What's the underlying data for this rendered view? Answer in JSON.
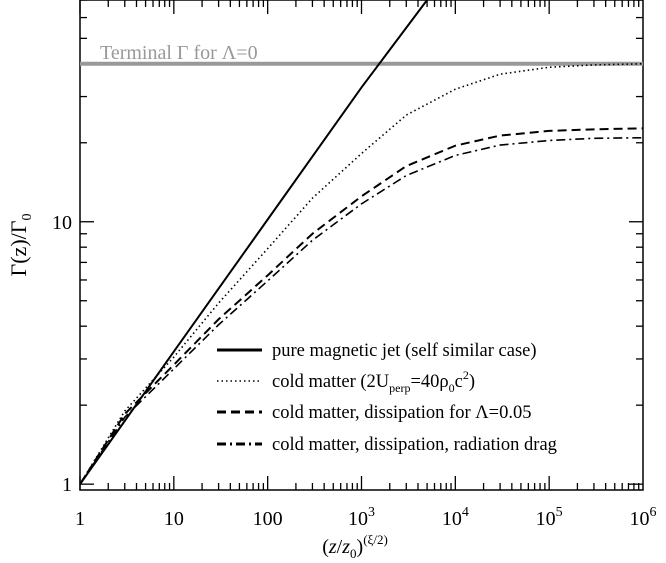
{
  "chart_data": {
    "type": "line",
    "xlabel": {
      "base": "(",
      "var": "z",
      "slash": "/",
      "var0": "z",
      "sub0": "0",
      "close": ")",
      "sup": "(ξ/2)"
    },
    "ylabel": {
      "main": "Γ(z)/Γ",
      "sub": "0"
    },
    "x_scale": "log",
    "y_scale": "log",
    "xlim": [
      1,
      1000000
    ],
    "ylim": [
      0.95,
      70
    ],
    "x_ticks": [
      {
        "value": 1,
        "label": "1"
      },
      {
        "value": 10,
        "label": "10"
      },
      {
        "value": 100,
        "label": "100"
      },
      {
        "value": 1000,
        "base": "10",
        "exp": "3"
      },
      {
        "value": 10000,
        "base": "10",
        "exp": "4"
      },
      {
        "value": 100000,
        "base": "10",
        "exp": "5"
      },
      {
        "value": 1000000,
        "base": "10",
        "exp": "6"
      }
    ],
    "y_ticks": [
      {
        "value": 1,
        "label": "1"
      },
      {
        "value": 10,
        "label": "10"
      }
    ],
    "terminal_line": {
      "label": "Terminal Γ for Λ=0",
      "value": 40,
      "color": "#999999"
    },
    "series": [
      {
        "name": "pure magnetic jet (self similar case)",
        "dash": "solid",
        "x": [
          1,
          10,
          100,
          1000,
          5000
        ],
        "y": [
          1,
          3.2,
          10.2,
          32.5,
          70
        ]
      },
      {
        "name": "cold matter",
        "name_parts": {
          "pre": "cold matter (2U",
          "sub1": "perp",
          "mid": "=40ρ",
          "sub2": "0",
          "c": "c",
          "sup": "2",
          "post": ")"
        },
        "dash": "dotted",
        "x": [
          1,
          3,
          10,
          30,
          100,
          300,
          1000,
          3000,
          10000,
          30000,
          100000,
          300000,
          1000000
        ],
        "y": [
          1,
          1.9,
          3.05,
          4.9,
          7.9,
          12.3,
          18.2,
          25.5,
          32.0,
          36.5,
          38.8,
          39.6,
          40.0
        ]
      },
      {
        "name": "cold matter, dissipation for Λ=0.05",
        "dash": "dashed",
        "x": [
          1,
          3,
          10,
          30,
          100,
          300,
          1000,
          3000,
          10000,
          30000,
          100000,
          300000,
          1000000
        ],
        "y": [
          1,
          1.85,
          2.85,
          4.25,
          6.25,
          9.0,
          12.5,
          16.3,
          19.5,
          21.3,
          22.2,
          22.5,
          22.7
        ]
      },
      {
        "name": "cold matter, dissipation, radiation drag",
        "dash": "dashdot",
        "x": [
          1,
          3,
          10,
          30,
          100,
          300,
          1000,
          3000,
          10000,
          30000,
          100000,
          300000,
          1000000
        ],
        "y": [
          1,
          1.8,
          2.75,
          4.05,
          5.95,
          8.5,
          11.7,
          15.0,
          17.9,
          19.6,
          20.4,
          20.8,
          20.9
        ]
      }
    ]
  }
}
